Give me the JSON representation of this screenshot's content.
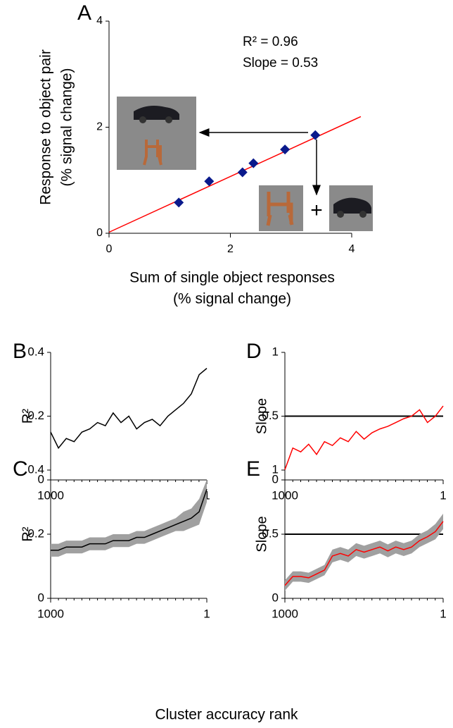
{
  "chart_data": [
    {
      "type": "scatter",
      "panel": "A",
      "x": [
        1.15,
        1.65,
        2.2,
        2.38,
        2.9,
        3.4
      ],
      "values": [
        0.58,
        0.98,
        1.15,
        1.32,
        1.58,
        1.85
      ],
      "color": "#0a1a8c",
      "trendline": {
        "x": [
          0,
          4.15
        ],
        "y": [
          0.02,
          2.2
        ],
        "color": "#ff0000"
      },
      "xlim": [
        0,
        4
      ],
      "ylim": [
        0,
        4
      ],
      "xticks": [
        0,
        2,
        4
      ],
      "yticks": [
        0,
        2,
        4
      ],
      "xlabel": [
        "Sum of single object responses",
        "(% signal change)"
      ],
      "ylabel": [
        "Response to object pair",
        "(% signal change)"
      ],
      "annotations": [
        "R² = 0.96",
        "Slope = 0.53",
        "+"
      ]
    },
    {
      "type": "line",
      "panel": "B",
      "color": "#000000",
      "x": [
        1000,
        950,
        900,
        850,
        800,
        750,
        700,
        650,
        600,
        550,
        500,
        450,
        400,
        350,
        300,
        250,
        200,
        150,
        100,
        50,
        1
      ],
      "values": [
        0.15,
        0.1,
        0.13,
        0.12,
        0.15,
        0.16,
        0.18,
        0.17,
        0.21,
        0.18,
        0.2,
        0.16,
        0.18,
        0.19,
        0.17,
        0.2,
        0.22,
        0.24,
        0.27,
        0.33,
        0.35
      ],
      "xlim": [
        1000,
        1
      ],
      "ylim": [
        0,
        0.4
      ],
      "xticks": [
        1000,
        1
      ],
      "yticks": [
        0,
        0.2,
        0.4
      ],
      "ylabel": [
        "R²"
      ]
    },
    {
      "type": "band",
      "panel": "C",
      "color": "#000000",
      "band_color": "#a0a0a0",
      "x": [
        1000,
        950,
        900,
        850,
        800,
        750,
        700,
        650,
        600,
        550,
        500,
        450,
        400,
        350,
        300,
        250,
        200,
        150,
        100,
        50,
        1
      ],
      "values": [
        0.15,
        0.15,
        0.16,
        0.16,
        0.16,
        0.17,
        0.17,
        0.17,
        0.18,
        0.18,
        0.18,
        0.19,
        0.19,
        0.2,
        0.21,
        0.22,
        0.23,
        0.24,
        0.25,
        0.27,
        0.34
      ],
      "lower": [
        0.13,
        0.13,
        0.14,
        0.14,
        0.14,
        0.15,
        0.15,
        0.15,
        0.16,
        0.16,
        0.16,
        0.17,
        0.17,
        0.18,
        0.19,
        0.2,
        0.21,
        0.21,
        0.22,
        0.23,
        0.3
      ],
      "upper": [
        0.17,
        0.17,
        0.18,
        0.18,
        0.18,
        0.19,
        0.19,
        0.19,
        0.2,
        0.2,
        0.2,
        0.21,
        0.21,
        0.22,
        0.23,
        0.24,
        0.25,
        0.27,
        0.28,
        0.31,
        0.37
      ],
      "xlim": [
        1000,
        1
      ],
      "ylim": [
        0,
        0.4
      ],
      "xticks": [
        1000,
        1
      ],
      "yticks": [
        0,
        0.2,
        0.4
      ],
      "ylabel": [
        "R²"
      ]
    },
    {
      "type": "line",
      "panel": "D",
      "color": "#ff0000",
      "hline": 0.5,
      "x": [
        1000,
        950,
        900,
        850,
        800,
        750,
        700,
        650,
        600,
        550,
        500,
        450,
        400,
        350,
        300,
        250,
        200,
        150,
        100,
        50,
        1
      ],
      "values": [
        0.08,
        0.25,
        0.22,
        0.28,
        0.2,
        0.3,
        0.27,
        0.33,
        0.3,
        0.38,
        0.32,
        0.37,
        0.4,
        0.42,
        0.45,
        0.48,
        0.5,
        0.55,
        0.45,
        0.5,
        0.58
      ],
      "xlim": [
        1000,
        1
      ],
      "ylim": [
        0,
        1
      ],
      "xticks": [
        1000,
        1
      ],
      "yticks": [
        0,
        0.5,
        1
      ],
      "ylabel": [
        "Slope"
      ]
    },
    {
      "type": "band",
      "panel": "E",
      "color": "#ff0000",
      "band_color": "#a0a0a0",
      "hline": 0.5,
      "x": [
        1000,
        950,
        900,
        850,
        800,
        750,
        700,
        650,
        600,
        550,
        500,
        450,
        400,
        350,
        300,
        250,
        200,
        150,
        100,
        50,
        1
      ],
      "values": [
        0.1,
        0.17,
        0.17,
        0.16,
        0.19,
        0.22,
        0.33,
        0.35,
        0.33,
        0.38,
        0.36,
        0.38,
        0.4,
        0.37,
        0.4,
        0.38,
        0.4,
        0.45,
        0.48,
        0.52,
        0.6
      ],
      "lower": [
        0.06,
        0.13,
        0.13,
        0.12,
        0.15,
        0.18,
        0.28,
        0.3,
        0.28,
        0.33,
        0.31,
        0.33,
        0.35,
        0.32,
        0.35,
        0.33,
        0.35,
        0.4,
        0.43,
        0.46,
        0.54
      ],
      "upper": [
        0.14,
        0.21,
        0.21,
        0.2,
        0.23,
        0.26,
        0.38,
        0.4,
        0.38,
        0.43,
        0.41,
        0.43,
        0.45,
        0.42,
        0.45,
        0.43,
        0.45,
        0.5,
        0.53,
        0.58,
        0.66
      ],
      "xlim": [
        1000,
        1
      ],
      "ylim": [
        0,
        1
      ],
      "xticks": [
        1000,
        1
      ],
      "yticks": [
        0,
        0.5,
        1
      ],
      "ylabel": [
        "Slope"
      ]
    }
  ],
  "xlabel": "Cluster accuracy rank"
}
